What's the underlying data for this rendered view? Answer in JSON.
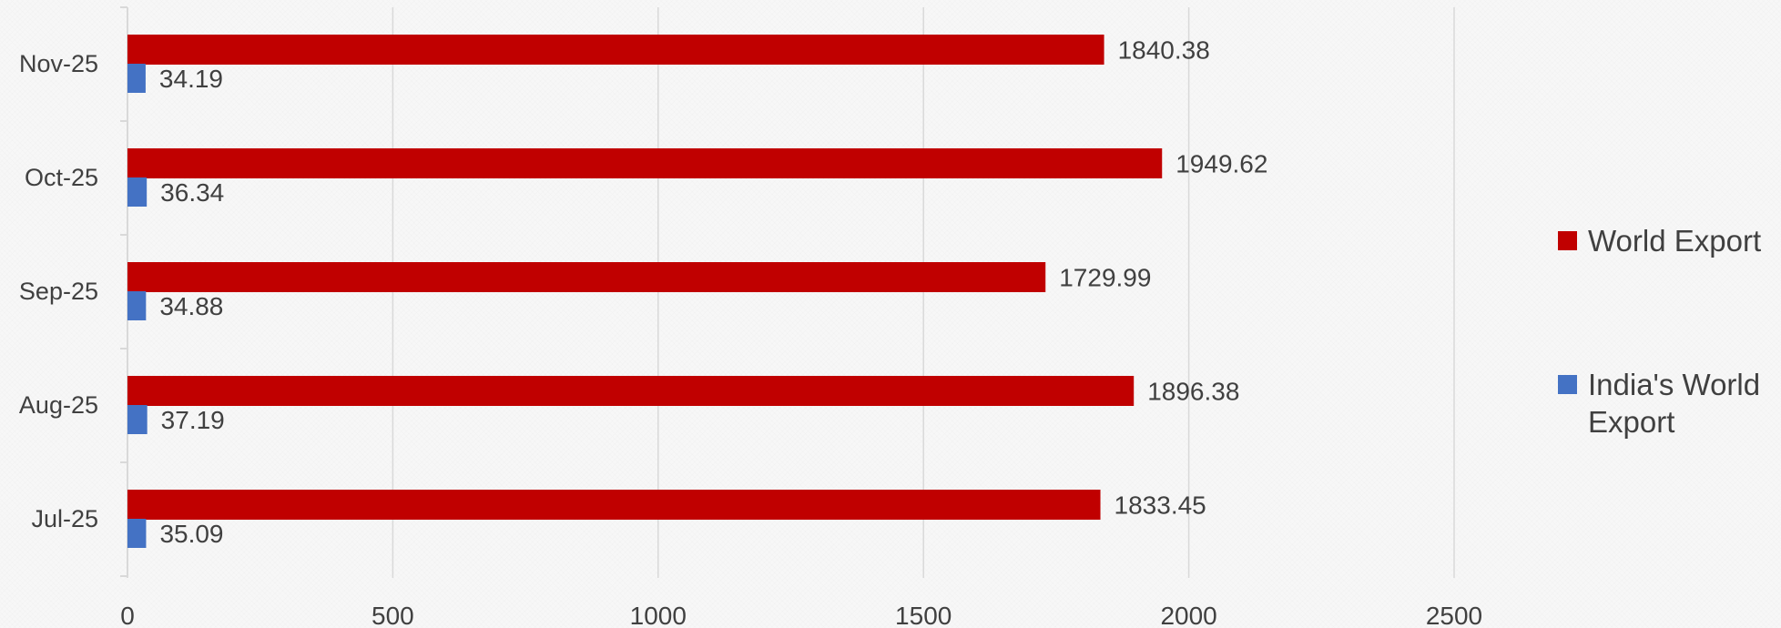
{
  "chart_data": {
    "type": "bar",
    "orientation": "horizontal",
    "categories": [
      "Jul-25",
      "Aug-25",
      "Sep-25",
      "Oct-25",
      "Nov-25"
    ],
    "series": [
      {
        "name": "World Export",
        "color": "#c00000",
        "values": [
          1833.45,
          1896.38,
          1729.99,
          1949.62,
          1840.38
        ],
        "labels": [
          "1833.45",
          "1896.38",
          "1729.99",
          "1949.62",
          "1840.38"
        ]
      },
      {
        "name": "India's World Export",
        "color": "#4472c4",
        "values": [
          35.09,
          37.19,
          34.88,
          36.34,
          34.19
        ],
        "labels": [
          "35.09",
          "37.19",
          "34.88",
          "36.34",
          "34.19"
        ]
      }
    ],
    "x_ticks": [
      "0",
      "500",
      "1000",
      "1500",
      "2000",
      "2500"
    ],
    "xlim": [
      0,
      2500
    ],
    "title": "",
    "xlabel": "",
    "ylabel": "",
    "grid": true,
    "legend_position": "right"
  }
}
